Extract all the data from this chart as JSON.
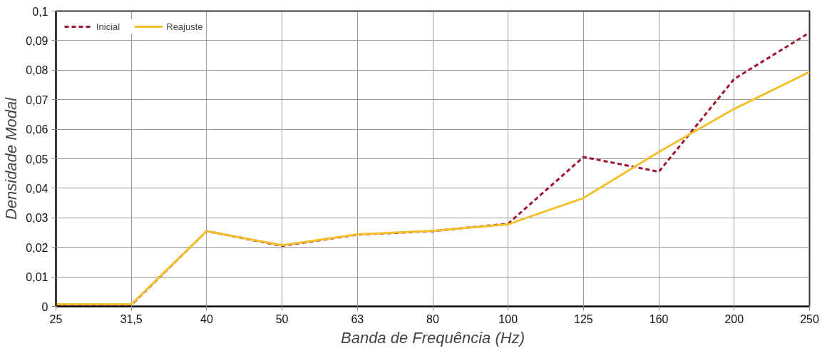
{
  "chart_data": {
    "type": "line",
    "xlabel": "Banda de Frequência (Hz)",
    "ylabel": "Densidade Modal",
    "categories": [
      "25",
      "31,5",
      "40",
      "50",
      "63",
      "80",
      "100",
      "125",
      "160",
      "200",
      "250"
    ],
    "series": [
      {
        "name": "Inicial",
        "color": "#a0152e",
        "line_style": "dashed",
        "values": [
          0.0005,
          0.0005,
          0.0255,
          0.0205,
          0.0243,
          0.0255,
          0.028,
          0.0506,
          0.0456,
          0.077,
          0.0927
        ]
      },
      {
        "name": "Reajuste",
        "color": "#f2c12e",
        "line_style": "solid",
        "values": [
          0.0007,
          0.0007,
          0.0255,
          0.0207,
          0.0244,
          0.0256,
          0.0278,
          0.0367,
          0.0523,
          0.0669,
          0.0794
        ]
      }
    ],
    "ylim": [
      0,
      0.1
    ],
    "yticks": [
      {
        "value": 0,
        "label": "0"
      },
      {
        "value": 0.01,
        "label": "0,01"
      },
      {
        "value": 0.02,
        "label": "0,02"
      },
      {
        "value": 0.03,
        "label": "0,03"
      },
      {
        "value": 0.04,
        "label": "0,04"
      },
      {
        "value": 0.05,
        "label": "0,05"
      },
      {
        "value": 0.06,
        "label": "0,06"
      },
      {
        "value": 0.07,
        "label": "0,07"
      },
      {
        "value": 0.08,
        "label": "0,08"
      },
      {
        "value": 0.09,
        "label": "0,09"
      },
      {
        "value": 0.1,
        "label": "0,1"
      }
    ],
    "grid": true,
    "legend": "top left",
    "marker": "none"
  }
}
